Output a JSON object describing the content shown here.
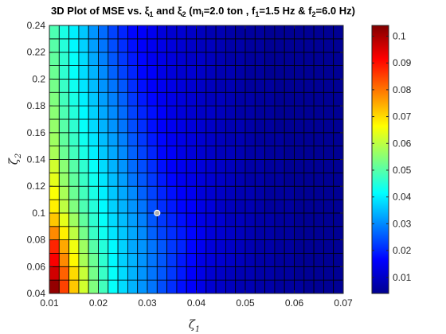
{
  "chart_data": {
    "type": "heatmap",
    "title": {
      "main": "3D Plot of MSE vs. ξ",
      "sub1": "1",
      "mid1": " and ξ",
      "sub2": "2",
      "mid2": " (m",
      "sub3": "i",
      "mid3": "=2.0 ton , f",
      "sub4": "1",
      "mid4": "=1.5 Hz & f",
      "sub5": "2",
      "end": "=6.0 Hz)"
    },
    "xlabel": {
      "symbol": "ζ",
      "sub": "1"
    },
    "ylabel": {
      "symbol": "ζ",
      "sub": "2"
    },
    "xlim": [
      0.01,
      0.07
    ],
    "ylim": [
      0.04,
      0.24
    ],
    "x_ticks": [
      "0.01",
      "0.02",
      "0.03",
      "0.04",
      "0.05",
      "0.06",
      "0.07"
    ],
    "y_ticks": [
      "0.04",
      "0.06",
      "0.08",
      "0.1",
      "0.12",
      "0.14",
      "0.16",
      "0.18",
      "0.2",
      "0.22",
      "0.24"
    ],
    "colorbar": {
      "range": [
        0.004,
        0.104
      ],
      "ticks": [
        "0.01",
        "0.02",
        "0.03",
        "0.04",
        "0.05",
        "0.06",
        "0.07",
        "0.08",
        "0.09",
        "0.1"
      ],
      "colormap": "jet"
    },
    "grid": {
      "nx": 30,
      "ny": 20,
      "dx": 0.002,
      "dy": 0.01
    },
    "values_description": "MSE per cell; rows bottom-to-top (zeta2), columns left-to-right (zeta1)",
    "values": [
      [
        0.102,
        0.085,
        0.072,
        0.062,
        0.054,
        0.048,
        0.042,
        0.038,
        0.034,
        0.031,
        0.028,
        0.024,
        0.021,
        0.018,
        0.016,
        0.014,
        0.012,
        0.011,
        0.01,
        0.009,
        0.009,
        0.008,
        0.008,
        0.007,
        0.007,
        0.007,
        0.006,
        0.006,
        0.006,
        0.006
      ],
      [
        0.096,
        0.082,
        0.07,
        0.061,
        0.053,
        0.047,
        0.042,
        0.038,
        0.034,
        0.031,
        0.028,
        0.025,
        0.022,
        0.019,
        0.016,
        0.014,
        0.012,
        0.011,
        0.01,
        0.009,
        0.009,
        0.008,
        0.008,
        0.007,
        0.007,
        0.006,
        0.006,
        0.006,
        0.006,
        0.006
      ],
      [
        0.092,
        0.078,
        0.067,
        0.058,
        0.052,
        0.046,
        0.041,
        0.037,
        0.034,
        0.031,
        0.028,
        0.025,
        0.022,
        0.019,
        0.017,
        0.014,
        0.013,
        0.012,
        0.011,
        0.01,
        0.009,
        0.008,
        0.008,
        0.007,
        0.007,
        0.006,
        0.006,
        0.006,
        0.006,
        0.006
      ],
      [
        0.088,
        0.075,
        0.065,
        0.057,
        0.05,
        0.045,
        0.041,
        0.037,
        0.033,
        0.031,
        0.028,
        0.025,
        0.022,
        0.02,
        0.017,
        0.015,
        0.013,
        0.012,
        0.011,
        0.01,
        0.009,
        0.008,
        0.008,
        0.007,
        0.007,
        0.006,
        0.006,
        0.006,
        0.006,
        0.006
      ],
      [
        0.078,
        0.068,
        0.06,
        0.053,
        0.047,
        0.043,
        0.039,
        0.036,
        0.033,
        0.03,
        0.026,
        0.023,
        0.021,
        0.019,
        0.017,
        0.015,
        0.013,
        0.012,
        0.011,
        0.01,
        0.009,
        0.008,
        0.008,
        0.007,
        0.007,
        0.006,
        0.006,
        0.006,
        0.006,
        0.006
      ],
      [
        0.072,
        0.064,
        0.057,
        0.051,
        0.046,
        0.042,
        0.038,
        0.035,
        0.032,
        0.029,
        0.025,
        0.022,
        0.02,
        0.018,
        0.016,
        0.014,
        0.013,
        0.012,
        0.01,
        0.01,
        0.009,
        0.008,
        0.008,
        0.007,
        0.007,
        0.006,
        0.006,
        0.006,
        0.006,
        0.006
      ],
      [
        0.068,
        0.06,
        0.054,
        0.049,
        0.045,
        0.041,
        0.037,
        0.034,
        0.031,
        0.028,
        0.024,
        0.021,
        0.019,
        0.017,
        0.016,
        0.014,
        0.013,
        0.011,
        0.01,
        0.009,
        0.009,
        0.008,
        0.007,
        0.007,
        0.007,
        0.006,
        0.006,
        0.006,
        0.006,
        0.006
      ],
      [
        0.066,
        0.058,
        0.052,
        0.048,
        0.044,
        0.04,
        0.036,
        0.033,
        0.03,
        0.026,
        0.023,
        0.02,
        0.018,
        0.016,
        0.015,
        0.013,
        0.012,
        0.011,
        0.01,
        0.009,
        0.009,
        0.008,
        0.007,
        0.007,
        0.007,
        0.006,
        0.006,
        0.006,
        0.006,
        0.006
      ],
      [
        0.064,
        0.056,
        0.051,
        0.047,
        0.043,
        0.039,
        0.035,
        0.032,
        0.028,
        0.025,
        0.022,
        0.019,
        0.017,
        0.015,
        0.014,
        0.013,
        0.012,
        0.011,
        0.01,
        0.009,
        0.008,
        0.008,
        0.007,
        0.007,
        0.006,
        0.006,
        0.006,
        0.006,
        0.006,
        0.006
      ],
      [
        0.062,
        0.055,
        0.05,
        0.046,
        0.042,
        0.038,
        0.034,
        0.031,
        0.027,
        0.024,
        0.021,
        0.018,
        0.016,
        0.015,
        0.014,
        0.013,
        0.012,
        0.011,
        0.01,
        0.009,
        0.008,
        0.008,
        0.007,
        0.007,
        0.006,
        0.006,
        0.006,
        0.006,
        0.006,
        0.006
      ],
      [
        0.058,
        0.052,
        0.048,
        0.044,
        0.04,
        0.036,
        0.033,
        0.03,
        0.026,
        0.023,
        0.02,
        0.017,
        0.016,
        0.014,
        0.013,
        0.012,
        0.011,
        0.01,
        0.01,
        0.009,
        0.008,
        0.008,
        0.007,
        0.007,
        0.006,
        0.006,
        0.006,
        0.006,
        0.006,
        0.006
      ],
      [
        0.057,
        0.051,
        0.047,
        0.043,
        0.039,
        0.035,
        0.032,
        0.029,
        0.025,
        0.022,
        0.019,
        0.017,
        0.015,
        0.014,
        0.013,
        0.012,
        0.011,
        0.01,
        0.009,
        0.009,
        0.008,
        0.007,
        0.007,
        0.007,
        0.006,
        0.006,
        0.006,
        0.006,
        0.006,
        0.006
      ],
      [
        0.056,
        0.05,
        0.046,
        0.042,
        0.038,
        0.034,
        0.031,
        0.028,
        0.024,
        0.021,
        0.018,
        0.016,
        0.015,
        0.014,
        0.013,
        0.012,
        0.011,
        0.01,
        0.009,
        0.009,
        0.008,
        0.007,
        0.007,
        0.006,
        0.006,
        0.006,
        0.006,
        0.006,
        0.006,
        0.006
      ],
      [
        0.055,
        0.049,
        0.045,
        0.041,
        0.037,
        0.033,
        0.03,
        0.027,
        0.023,
        0.02,
        0.018,
        0.016,
        0.014,
        0.013,
        0.012,
        0.011,
        0.011,
        0.01,
        0.009,
        0.008,
        0.008,
        0.007,
        0.007,
        0.006,
        0.006,
        0.006,
        0.006,
        0.006,
        0.006,
        0.006
      ],
      [
        0.054,
        0.048,
        0.044,
        0.04,
        0.036,
        0.032,
        0.029,
        0.026,
        0.022,
        0.019,
        0.017,
        0.015,
        0.014,
        0.013,
        0.012,
        0.011,
        0.01,
        0.01,
        0.009,
        0.008,
        0.008,
        0.007,
        0.007,
        0.006,
        0.006,
        0.006,
        0.006,
        0.006,
        0.006,
        0.006
      ],
      [
        0.053,
        0.047,
        0.043,
        0.039,
        0.035,
        0.031,
        0.028,
        0.025,
        0.021,
        0.018,
        0.016,
        0.015,
        0.014,
        0.013,
        0.012,
        0.011,
        0.01,
        0.009,
        0.009,
        0.008,
        0.007,
        0.007,
        0.007,
        0.006,
        0.006,
        0.006,
        0.006,
        0.006,
        0.006,
        0.006
      ],
      [
        0.052,
        0.046,
        0.042,
        0.038,
        0.034,
        0.03,
        0.026,
        0.023,
        0.02,
        0.017,
        0.016,
        0.014,
        0.013,
        0.012,
        0.012,
        0.011,
        0.01,
        0.009,
        0.009,
        0.008,
        0.007,
        0.007,
        0.006,
        0.006,
        0.006,
        0.006,
        0.006,
        0.006,
        0.006,
        0.006
      ],
      [
        0.051,
        0.046,
        0.042,
        0.038,
        0.033,
        0.029,
        0.025,
        0.022,
        0.019,
        0.017,
        0.015,
        0.014,
        0.013,
        0.012,
        0.011,
        0.011,
        0.01,
        0.009,
        0.008,
        0.008,
        0.007,
        0.007,
        0.006,
        0.006,
        0.006,
        0.006,
        0.006,
        0.006,
        0.006,
        0.006
      ],
      [
        0.05,
        0.045,
        0.041,
        0.037,
        0.032,
        0.028,
        0.024,
        0.021,
        0.018,
        0.016,
        0.015,
        0.014,
        0.013,
        0.012,
        0.011,
        0.01,
        0.01,
        0.009,
        0.008,
        0.008,
        0.007,
        0.007,
        0.006,
        0.006,
        0.006,
        0.006,
        0.006,
        0.006,
        0.006,
        0.006
      ],
      [
        0.049,
        0.044,
        0.04,
        0.036,
        0.031,
        0.027,
        0.023,
        0.02,
        0.017,
        0.016,
        0.015,
        0.013,
        0.012,
        0.012,
        0.011,
        0.01,
        0.009,
        0.009,
        0.008,
        0.007,
        0.007,
        0.007,
        0.006,
        0.006,
        0.006,
        0.006,
        0.006,
        0.006,
        0.006,
        0.006
      ]
    ],
    "marker": {
      "x": 0.032,
      "y": 0.1
    },
    "colors": {
      "cell_edge": "#000000",
      "marker_fill": "#b0b0b0",
      "marker_edge": "#ffffff",
      "axis": "#262626"
    }
  }
}
